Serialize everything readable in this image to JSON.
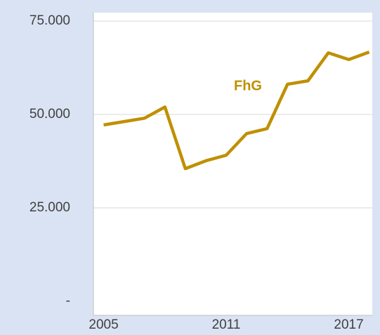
{
  "chart_data": {
    "type": "line",
    "x": [
      2005,
      2006,
      2007,
      2008,
      2009,
      2010,
      2011,
      2012,
      2013,
      2014,
      2015,
      2016,
      2017,
      2018
    ],
    "series": [
      {
        "name": "FhG",
        "color": "#bf9000",
        "values": [
          47200,
          48100,
          49000,
          52000,
          35500,
          37600,
          39100,
          44900,
          46200,
          58100,
          59000,
          66500,
          64700,
          66700
        ]
      }
    ],
    "xlim": [
      2004.5,
      2018.15
    ],
    "xticks": [
      2005,
      2011,
      2017
    ],
    "ylim": [
      0,
      75000
    ],
    "yticks": [
      {
        "value": 0,
        "label": "-"
      },
      {
        "value": 25000,
        "label": "25.000"
      },
      {
        "value": 50000,
        "label": "50.000"
      },
      {
        "value": 75000,
        "label": "75.000"
      }
    ],
    "grid": true
  }
}
